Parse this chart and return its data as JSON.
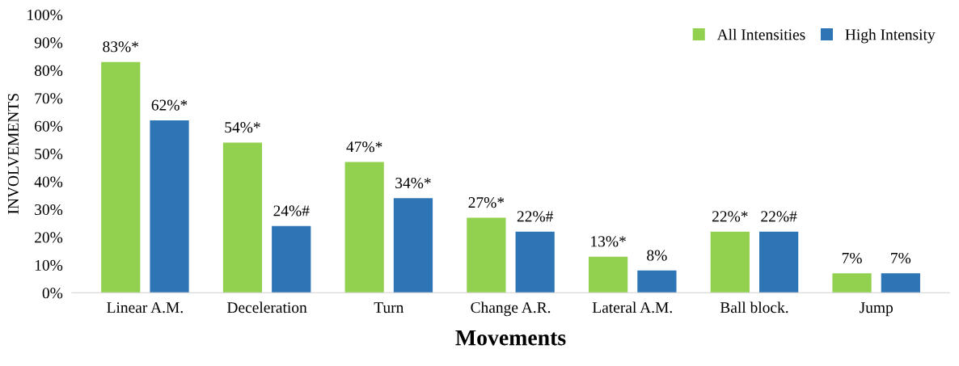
{
  "chart_data": {
    "type": "bar",
    "xlabel": "Movements",
    "ylabel": "INVOLVEMENTS",
    "categories": [
      "Linear A.M.",
      "Deceleration",
      "Turn",
      "Change A.R.",
      "Lateral A.M.",
      "Ball block.",
      "Jump"
    ],
    "series": [
      {
        "name": "All Intensities",
        "color": "#92d050",
        "values": [
          83,
          54,
          47,
          27,
          13,
          22,
          7
        ],
        "value_labels": [
          "83%*",
          "54%*",
          "47%*",
          "27%*",
          "13%*",
          "22%*",
          "7%"
        ]
      },
      {
        "name": "High Intensity",
        "color": "#2e75b6",
        "values": [
          62,
          24,
          34,
          22,
          8,
          22,
          7
        ],
        "value_labels": [
          "62%*",
          "24%#",
          "34%*",
          "22%#",
          "8%",
          "22%#",
          "7%"
        ]
      }
    ],
    "ylim": [
      0,
      100
    ],
    "yticks": [
      {
        "value": 0,
        "label": "0%"
      },
      {
        "value": 10,
        "label": "10%"
      },
      {
        "value": 20,
        "label": "20%"
      },
      {
        "value": 30,
        "label": "30%"
      },
      {
        "value": 40,
        "label": "40%"
      },
      {
        "value": 50,
        "label": "50%"
      },
      {
        "value": 60,
        "label": "60%"
      },
      {
        "value": 70,
        "label": "70%"
      },
      {
        "value": 80,
        "label": "80%"
      },
      {
        "value": 90,
        "label": "90%"
      },
      {
        "value": 100,
        "label": "100%"
      }
    ],
    "grid": false,
    "legend": "top right"
  }
}
